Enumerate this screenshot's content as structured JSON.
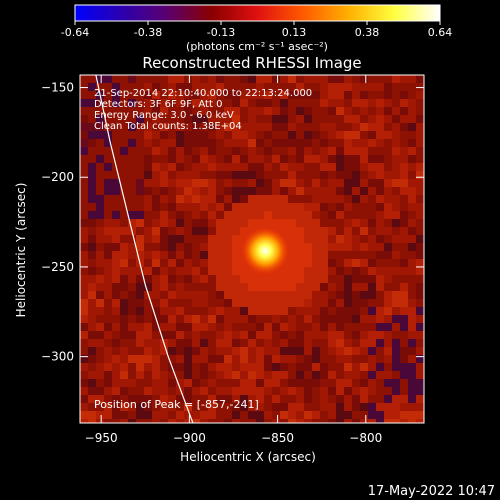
{
  "colorbar": {
    "ticks": [
      "-0.64",
      "-0.38",
      "-0.13",
      "0.13",
      "0.38",
      "0.64"
    ],
    "unit_label": "(photons cm⁻² s⁻¹ asec⁻²)",
    "range": [
      -0.64,
      0.64
    ],
    "stops": [
      "#0000ff",
      "#2a00b0",
      "#5a0070",
      "#8a0000",
      "#e01010",
      "#ff5a00",
      "#ffb000",
      "#ffff40",
      "#ffffff"
    ]
  },
  "chart_data": {
    "type": "heatmap",
    "title": "Reconstructed RHESSI Image",
    "xlabel": "Heliocentric X (arcsec)",
    "ylabel": "Heliocentric Y (arcsec)",
    "xlim": [
      -962,
      -767
    ],
    "ylim": [
      -337,
      -143
    ],
    "x_ticks": [
      -950,
      -900,
      -850,
      -800
    ],
    "y_ticks": [
      -150,
      -200,
      -250,
      -300
    ],
    "x_tick_labels": [
      "−950",
      "−900",
      "−850",
      "−800"
    ],
    "y_tick_labels": [
      "−150",
      "−200",
      "−250",
      "−300"
    ],
    "peak": {
      "x": -857,
      "y": -241,
      "value": 0.64
    },
    "info_lines": [
      "21-Sep-2014 22:10:40.000 to 22:13:24.000",
      "Detectors: 3F 6F 9F, Att 0",
      "Energy Range: 3.0 - 6.0 keV",
      "Clean    Total counts: 1.38E+04"
    ],
    "peak_label": "Position of Peak = [-857,-241]",
    "limb_curve": [
      [
        -953,
        -143
      ],
      [
        -945,
        -180
      ],
      [
        -935,
        -220
      ],
      [
        -925,
        -260
      ],
      [
        -912,
        -300
      ],
      [
        -898,
        -337
      ]
    ],
    "grid": false
  },
  "footer": {
    "timestamp": "17-May-2022 10:47"
  },
  "colors": {
    "background": "#000000",
    "foreground": "#ffffff",
    "limb": "#ffffff"
  }
}
